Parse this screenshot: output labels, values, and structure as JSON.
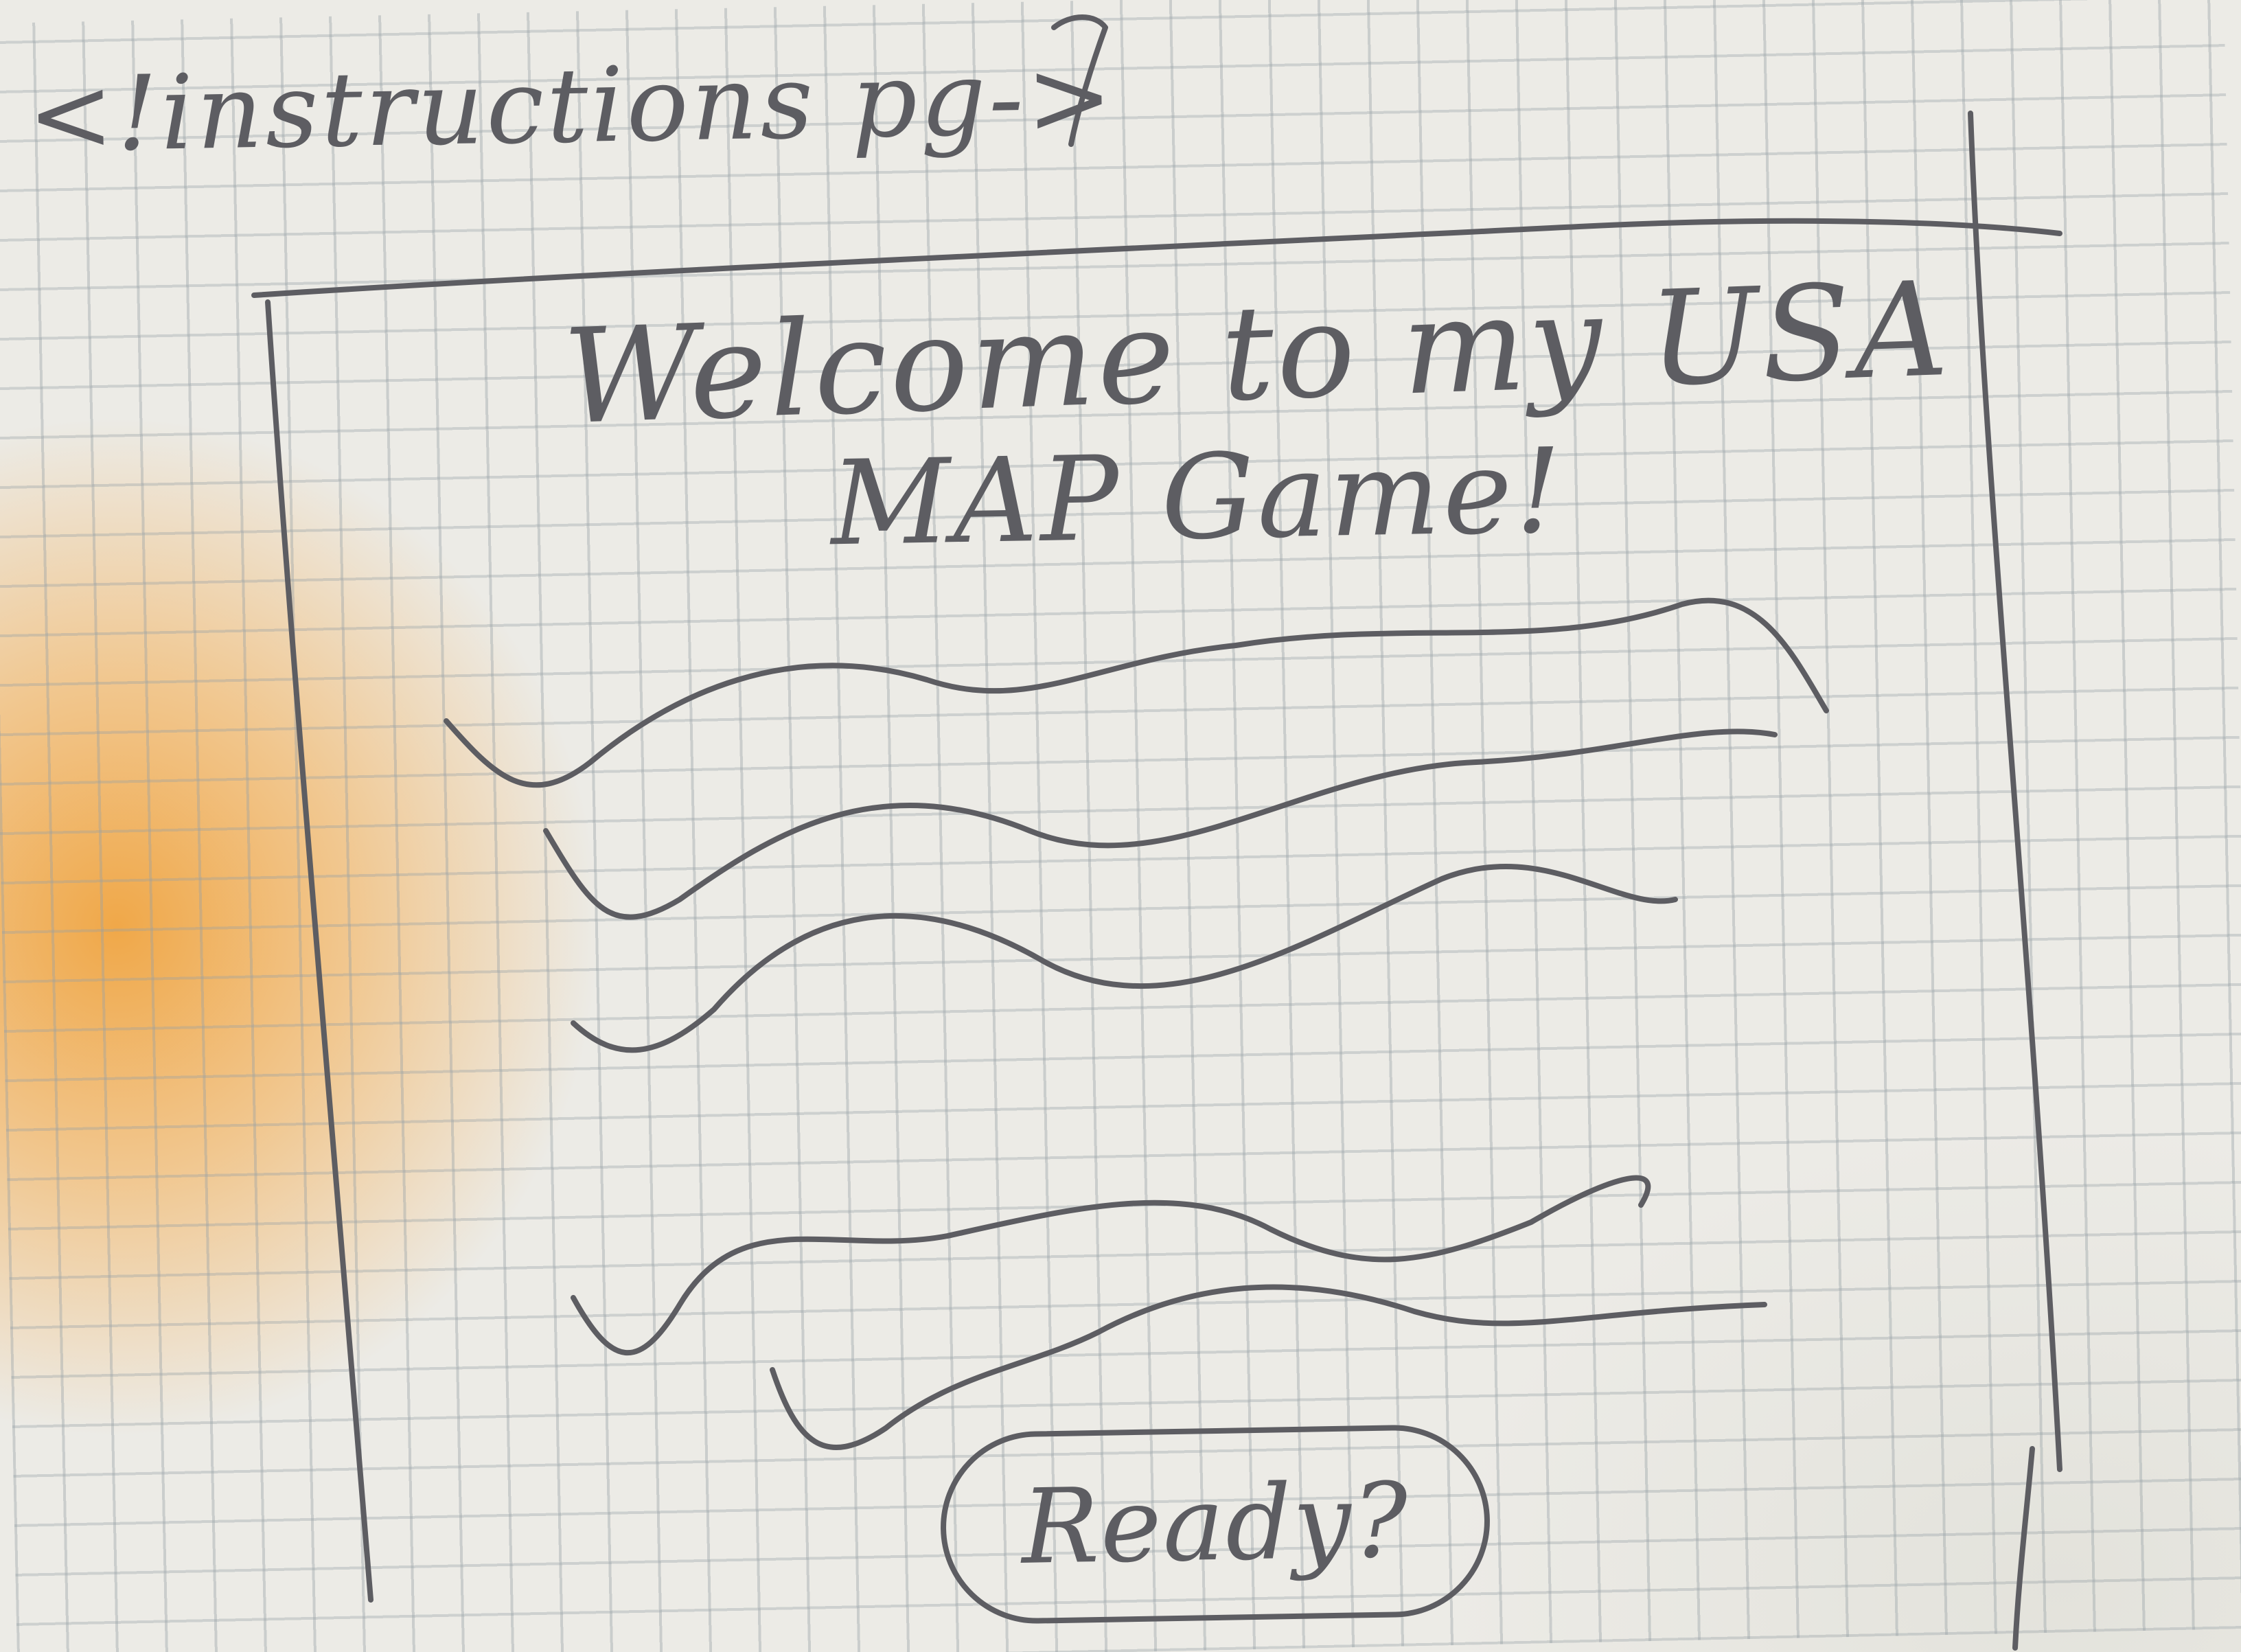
{
  "sketch": {
    "header_comment": "<!instructions pg->",
    "welcome_line_1": "Welcome to my USA",
    "welcome_line_2": "MAP Game!",
    "ready_button_label": "Ready?"
  },
  "icons": {
    "placeholder_text_lines": "wavy-line-icon"
  },
  "colors": {
    "pencil": "#5d5d62",
    "paper": "#ecebe6",
    "grid": "#96a0a5",
    "warm_light": "#f19c2d"
  }
}
